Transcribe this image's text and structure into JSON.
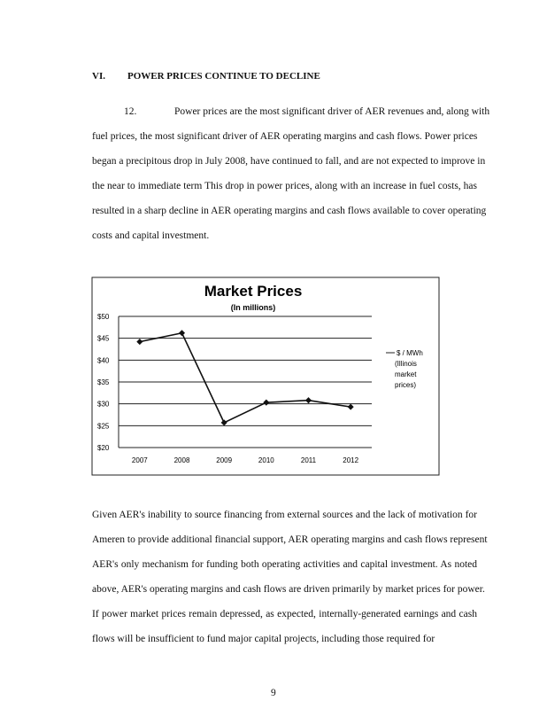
{
  "heading": {
    "number": "VI.",
    "title": "POWER PRICES CONTINUE TO DECLINE"
  },
  "paragraph1": {
    "number": "12.",
    "lines": [
      "Power prices are the most significant driver of AER revenues and, along with",
      "fuel prices, the most significant driver of AER operating margins and cash flows.  Power prices",
      "began a precipitous drop in July 2008, have continued to fall, and are not expected to improve in",
      "the near to immediate term  This drop in power prices, along with an increase in fuel costs, has",
      "resulted in a sharp decline in AER operating margins and cash flows available to cover operating",
      "costs and capital investment."
    ]
  },
  "chart_data": {
    "type": "line",
    "title": "Market Prices",
    "subtitle": "(In millions)",
    "categories": [
      "2007",
      "2008",
      "2009",
      "2010",
      "2011",
      "2012"
    ],
    "series": [
      {
        "name": "$ / MWh (Illinois market prices)",
        "values": [
          44.2,
          46.2,
          25.7,
          30.3,
          30.8,
          29.3
        ]
      }
    ],
    "legend_lines": [
      "$ / MWh",
      "(Illinois",
      "market",
      "prices)"
    ],
    "ylim": [
      20,
      50
    ],
    "yticks": [
      "$20",
      "$25",
      "$30",
      "$35",
      "$40",
      "$45",
      "$50"
    ],
    "grid": true,
    "legend_placement": "right",
    "line_color": "#111111"
  },
  "paragraph2": {
    "lines": [
      "Given AER's inability to source financing from external sources and the lack of motivation for",
      "Ameren to provide additional financial support, AER operating margins and cash flows represent",
      "AER's only mechanism for funding both operating activities and capital investment.  As noted",
      "above, AER's operating margins and cash flows are driven primarily by market prices for power.",
      "If power market prices remain depressed, as expected, internally-generated earnings and cash",
      "flows will be insufficient to fund major capital projects, including those required for"
    ]
  },
  "page_number": "9"
}
